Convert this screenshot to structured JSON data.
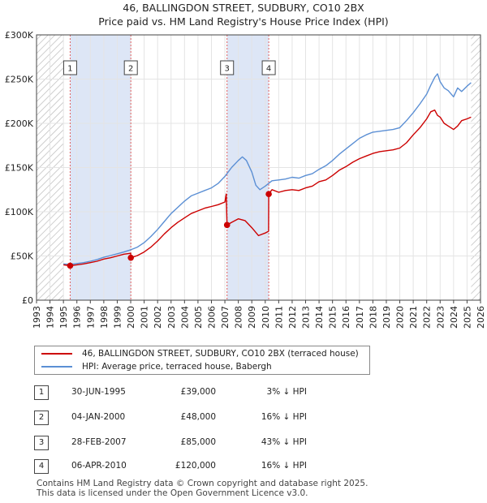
{
  "title": "46, BALLINGDON STREET, SUDBURY, CO10 2BX",
  "subtitle": "Price paid vs. HM Land Registry's House Price Index (HPI)",
  "legend": {
    "property": "46, BALLINGDON STREET, SUDBURY, CO10 2BX (terraced house)",
    "hpi": "HPI: Average price, terraced house, Babergh"
  },
  "colors": {
    "property": "#cc0000",
    "hpi": "#5b8fd4",
    "shade": "#dde6f6",
    "marker_line": "#e06060"
  },
  "transactions": [
    {
      "num": "1",
      "date": "30-JUN-1995",
      "price": "£39,000",
      "hpi": "3% ↓ HPI"
    },
    {
      "num": "2",
      "date": "04-JAN-2000",
      "price": "£48,000",
      "hpi": "16% ↓ HPI"
    },
    {
      "num": "3",
      "date": "28-FEB-2007",
      "price": "£85,000",
      "hpi": "43% ↓ HPI"
    },
    {
      "num": "4",
      "date": "06-APR-2010",
      "price": "£120,000",
      "hpi": "16% ↓ HPI"
    }
  ],
  "footer": {
    "line1": "Contains HM Land Registry data © Crown copyright and database right 2025.",
    "line2": "This data is licensed under the Open Government Licence v3.0."
  },
  "chart_data": {
    "type": "line",
    "title": "46, BALLINGDON STREET, SUDBURY, CO10 2BX",
    "xlabel": "",
    "ylabel": "",
    "xlim": [
      1993,
      2026
    ],
    "ylim": [
      0,
      300000
    ],
    "xticks": [
      1993,
      1994,
      1995,
      1996,
      1997,
      1998,
      1999,
      2000,
      2001,
      2002,
      2003,
      2004,
      2005,
      2006,
      2007,
      2008,
      2009,
      2010,
      2011,
      2012,
      2013,
      2014,
      2015,
      2016,
      2017,
      2018,
      2019,
      2020,
      2021,
      2022,
      2023,
      2024,
      2025,
      2026
    ],
    "yticks": [
      {
        "value": 0,
        "label": "£0"
      },
      {
        "value": 50000,
        "label": "£50K"
      },
      {
        "value": 100000,
        "label": "£100K"
      },
      {
        "value": 150000,
        "label": "£150K"
      },
      {
        "value": 200000,
        "label": "£200K"
      },
      {
        "value": 250000,
        "label": "£250K"
      },
      {
        "value": 300000,
        "label": "£300K"
      }
    ],
    "grid": true,
    "hatched_ranges": [
      [
        1993,
        1995.0
      ],
      [
        2025.3,
        2026
      ]
    ],
    "shaded_ranges": [
      [
        1995.5,
        2000.0
      ],
      [
        2007.16,
        2010.26
      ]
    ],
    "markers": [
      {
        "label": "1",
        "x": 1995.5,
        "y": 39000
      },
      {
        "label": "2",
        "x": 2000.01,
        "y": 48000
      },
      {
        "label": "3",
        "x": 2007.16,
        "y": 85000
      },
      {
        "label": "4",
        "x": 2010.26,
        "y": 120000
      }
    ],
    "series": [
      {
        "name": "HPI: Average price, terraced house, Babergh",
        "x": [
          1995.0,
          1995.5,
          1996.0,
          1996.5,
          1997.0,
          1997.5,
          1998.0,
          1998.5,
          1999.0,
          1999.5,
          2000.0,
          2000.5,
          2001.0,
          2001.5,
          2002.0,
          2002.5,
          2003.0,
          2003.5,
          2004.0,
          2004.5,
          2005.0,
          2005.5,
          2006.0,
          2006.5,
          2007.0,
          2007.5,
          2008.0,
          2008.3,
          2008.6,
          2009.0,
          2009.3,
          2009.6,
          2010.0,
          2010.5,
          2011.0,
          2011.5,
          2012.0,
          2012.5,
          2013.0,
          2013.5,
          2014.0,
          2014.5,
          2015.0,
          2015.5,
          2016.0,
          2016.5,
          2017.0,
          2017.5,
          2018.0,
          2018.5,
          2019.0,
          2019.5,
          2020.0,
          2020.5,
          2021.0,
          2021.5,
          2022.0,
          2022.3,
          2022.6,
          2022.8,
          2023.0,
          2023.3,
          2023.6,
          2024.0,
          2024.3,
          2024.6,
          2025.0,
          2025.3
        ],
        "values": [
          41000,
          40500,
          41500,
          42500,
          44000,
          46000,
          48500,
          50500,
          52500,
          54500,
          57000,
          60000,
          65000,
          72000,
          80000,
          89000,
          98000,
          105000,
          112000,
          118000,
          121000,
          124000,
          127000,
          132000,
          140000,
          150000,
          158000,
          162000,
          158000,
          145000,
          130000,
          125000,
          129000,
          135000,
          136000,
          137000,
          139000,
          138000,
          141000,
          143000,
          148000,
          152000,
          158000,
          165000,
          171000,
          177000,
          183000,
          187000,
          190000,
          191000,
          192000,
          193000,
          195000,
          203000,
          212000,
          222000,
          233000,
          243000,
          252000,
          256000,
          247000,
          240000,
          237000,
          230000,
          240000,
          236000,
          242000,
          246000
        ]
      },
      {
        "name": "46, BALLINGDON STREET, SUDBURY, CO10 2BX (terraced house)",
        "x": [
          1995.0,
          1995.5,
          1996.0,
          1996.5,
          1997.0,
          1997.5,
          1998.0,
          1998.5,
          1999.0,
          1999.5,
          2000.0,
          2000.01,
          2000.5,
          2001.0,
          2001.5,
          2002.0,
          2002.5,
          2003.0,
          2003.5,
          2004.0,
          2004.5,
          2005.0,
          2005.5,
          2006.0,
          2006.5,
          2007.0,
          2007.1,
          2007.16,
          2007.5,
          2008.0,
          2008.5,
          2009.0,
          2009.5,
          2010.0,
          2010.25,
          2010.26,
          2010.5,
          2011.0,
          2011.5,
          2012.0,
          2012.5,
          2013.0,
          2013.5,
          2014.0,
          2014.5,
          2015.0,
          2015.5,
          2016.0,
          2016.5,
          2017.0,
          2017.5,
          2018.0,
          2018.5,
          2019.0,
          2019.5,
          2020.0,
          2020.5,
          2021.0,
          2021.5,
          2022.0,
          2022.3,
          2022.6,
          2022.8,
          2023.0,
          2023.3,
          2023.6,
          2024.0,
          2024.3,
          2024.6,
          2025.0,
          2025.3
        ],
        "values": [
          40000,
          39000,
          40000,
          41000,
          42500,
          44000,
          46500,
          48000,
          50000,
          52000,
          53000,
          48000,
          50500,
          54500,
          60000,
          67000,
          75000,
          82000,
          88000,
          93000,
          98000,
          101000,
          104000,
          106000,
          108000,
          111000,
          120000,
          85000,
          88000,
          92000,
          90000,
          82000,
          73000,
          76000,
          78000,
          120000,
          125000,
          122000,
          124000,
          125000,
          124000,
          127000,
          129000,
          134000,
          136000,
          141000,
          147000,
          151000,
          156000,
          160000,
          163000,
          166000,
          168000,
          169000,
          170000,
          172000,
          178000,
          187000,
          195000,
          205000,
          213000,
          215000,
          209000,
          207000,
          200000,
          197000,
          193000,
          197000,
          203000,
          205000,
          207000
        ]
      }
    ]
  }
}
